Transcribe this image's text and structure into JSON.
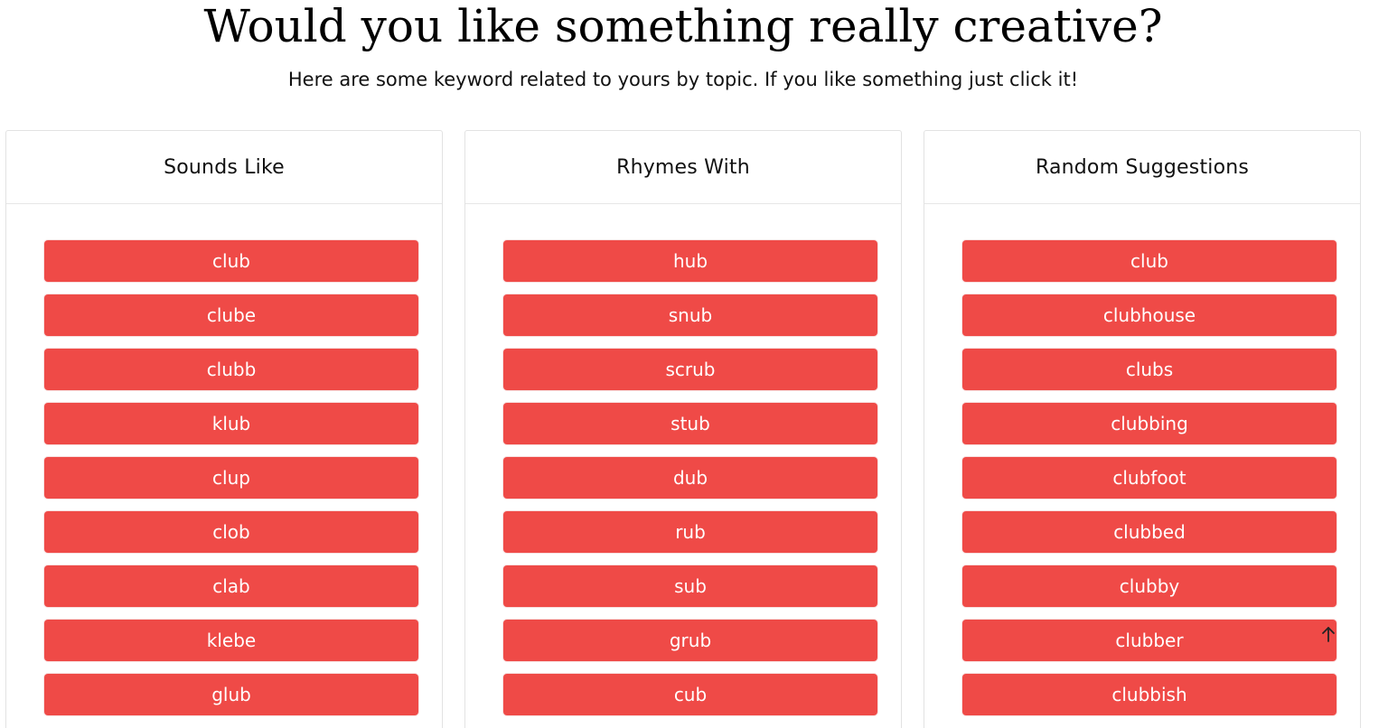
{
  "header": {
    "title": "Would you like something really creative?",
    "subtitle": "Here are some keyword related to yours by topic. If you like something just click it!"
  },
  "columns": [
    {
      "title": "Sounds Like",
      "items": [
        "club",
        "clube",
        "clubb",
        "klub",
        "clup",
        "clob",
        "clab",
        "klebe",
        "glub"
      ]
    },
    {
      "title": "Rhymes With",
      "items": [
        "hub",
        "snub",
        "scrub",
        "stub",
        "dub",
        "rub",
        "sub",
        "grub",
        "cub"
      ]
    },
    {
      "title": "Random Suggestions",
      "items": [
        "club",
        "clubhouse",
        "clubs",
        "clubbing",
        "clubfoot",
        "clubbed",
        "clubby",
        "clubber",
        "clubbish"
      ]
    }
  ],
  "colors": {
    "button_background": "#ef4a47",
    "button_text": "#ffffff"
  },
  "icons": {
    "scroll_top": "arrow-up-icon"
  }
}
